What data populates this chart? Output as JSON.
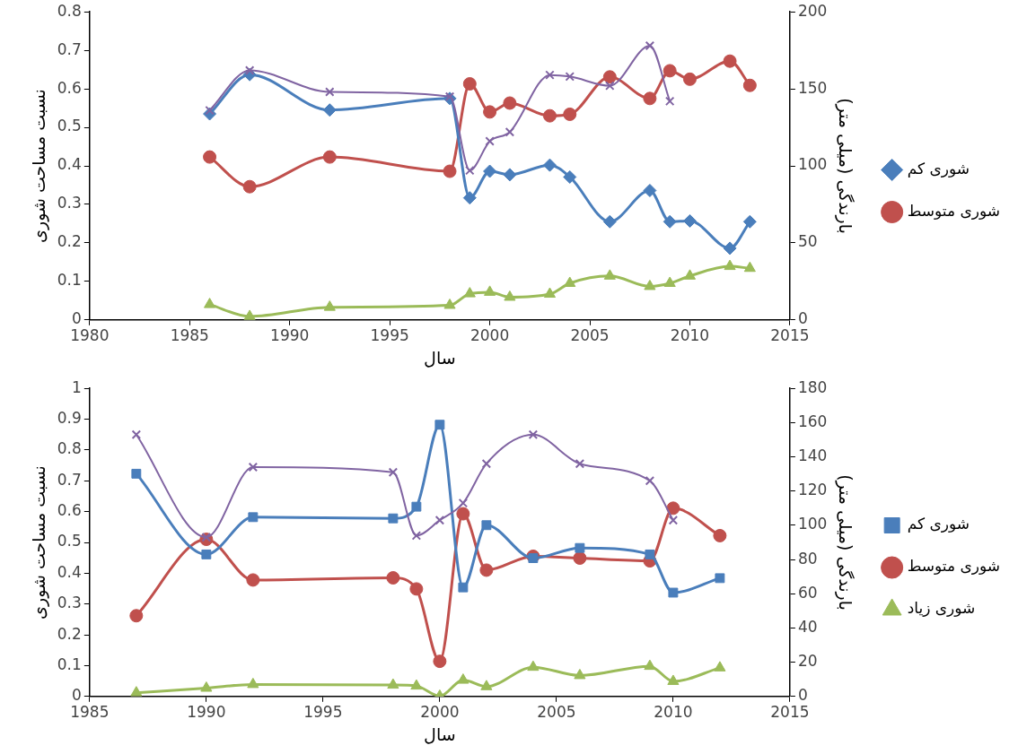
{
  "chart_data": [
    {
      "type": "line",
      "xlabel": "سال",
      "ylabel": "نسبت مساحت شوری",
      "y2label": "بارندگی (میلی متر)",
      "legend": "right",
      "grid": false,
      "xlim": [
        1980,
        2015
      ],
      "xticks": [
        1980,
        1985,
        1990,
        1995,
        2000,
        2005,
        2010,
        2015
      ],
      "ylim": [
        0,
        0.8
      ],
      "yticks": [
        0,
        0.1,
        0.2,
        0.3,
        0.4,
        0.5,
        0.6,
        0.7,
        0.8
      ],
      "y2lim": [
        0,
        200
      ],
      "y2ticks": [
        0,
        50,
        100,
        150,
        200
      ],
      "series": [
        {
          "name": "شوری کم",
          "color": "#4a7ebb",
          "marker": "diamond",
          "x": [
            1986,
            1988,
            1992,
            1998,
            1999,
            2000,
            2001,
            2003,
            2004,
            2006,
            2008,
            2009,
            2010,
            2012,
            2013
          ],
          "values": [
            0.535,
            0.637,
            0.545,
            0.575,
            0.317,
            0.386,
            0.377,
            0.402,
            0.371,
            0.255,
            0.336,
            0.255,
            0.257,
            0.186,
            0.255
          ]
        },
        {
          "name": "شوری متوسط",
          "color": "#c0504d",
          "marker": "circle",
          "x": [
            1986,
            1988,
            1992,
            1998,
            1999,
            2000,
            2001,
            2003,
            2004,
            2006,
            2008,
            2009,
            2010,
            2012,
            2013
          ],
          "values": [
            0.423,
            0.346,
            0.423,
            0.386,
            0.613,
            0.54,
            0.563,
            0.53,
            0.534,
            0.631,
            0.575,
            0.647,
            0.625,
            0.672,
            0.609
          ]
        },
        {
          "color": "#9bbb59",
          "marker": "triangle",
          "x": [
            1986,
            1988,
            1992,
            1998,
            1999,
            2000,
            2001,
            2003,
            2004,
            2006,
            2008,
            2009,
            2010,
            2012,
            2013
          ],
          "values": [
            0.04,
            0.009,
            0.033,
            0.038,
            0.068,
            0.072,
            0.059,
            0.067,
            0.095,
            0.114,
            0.087,
            0.095,
            0.114,
            0.139,
            0.134
          ]
        },
        {
          "color": "#8064a2",
          "marker": "cross",
          "axis": "y2",
          "x": [
            1986,
            1988,
            1992,
            1998,
            1999,
            2000,
            2001,
            2003,
            2004,
            2006,
            2008,
            2009
          ],
          "values": [
            136,
            162,
            148,
            145,
            97,
            116,
            122,
            159,
            158,
            152,
            178,
            142
          ]
        }
      ]
    },
    {
      "type": "line",
      "xlabel": "سال",
      "ylabel": "نسبت مساحت شوری",
      "y2label": "بارندگی (میلی متر)",
      "legend": "right",
      "grid": false,
      "xlim": [
        1985,
        2015
      ],
      "xticks": [
        1985,
        1990,
        1995,
        2000,
        2005,
        2010,
        2015
      ],
      "ylim": [
        0,
        1
      ],
      "yticks": [
        0,
        0.1,
        0.2,
        0.3,
        0.4,
        0.5,
        0.6,
        0.7,
        0.8,
        0.9,
        1
      ],
      "y2lim": [
        0,
        180
      ],
      "y2ticks": [
        0,
        20,
        40,
        60,
        80,
        100,
        120,
        140,
        160,
        180
      ],
      "series": [
        {
          "name": "شوری کم",
          "color": "#4a7ebb",
          "marker": "square",
          "x": [
            1987,
            1990,
            1992,
            1998,
            1999,
            2000,
            2001,
            2002,
            2004,
            2006,
            2009,
            2010,
            2012
          ],
          "values": [
            0.723,
            0.461,
            0.582,
            0.578,
            0.616,
            0.882,
            0.354,
            0.556,
            0.449,
            0.482,
            0.461,
            0.337,
            0.384
          ]
        },
        {
          "name": "شوری متوسط",
          "color": "#c0504d",
          "marker": "circle",
          "x": [
            1987,
            1990,
            1992,
            1998,
            1999,
            2000,
            2001,
            2002,
            2004,
            2006,
            2009,
            2010,
            2012
          ],
          "values": [
            0.262,
            0.51,
            0.378,
            0.385,
            0.349,
            0.114,
            0.593,
            0.41,
            0.455,
            0.449,
            0.44,
            0.611,
            0.522
          ]
        },
        {
          "name": "شوری زیاد",
          "color": "#9bbb59",
          "marker": "triangle",
          "x": [
            1987,
            1990,
            1992,
            1998,
            1999,
            2000,
            2001,
            2002,
            2004,
            2006,
            2009,
            2010,
            2012
          ],
          "values": [
            0.012,
            0.027,
            0.039,
            0.037,
            0.034,
            0.001,
            0.053,
            0.032,
            0.095,
            0.068,
            0.098,
            0.049,
            0.093
          ]
        },
        {
          "color": "#8064a2",
          "marker": "cross",
          "axis": "y2",
          "x": [
            1987,
            1990,
            1992,
            1998,
            1999,
            2000,
            2001,
            2002,
            2004,
            2006,
            2009,
            2010
          ],
          "values": [
            153,
            93,
            134,
            131,
            94,
            103,
            113,
            136,
            153,
            136,
            126,
            103
          ]
        }
      ]
    }
  ]
}
